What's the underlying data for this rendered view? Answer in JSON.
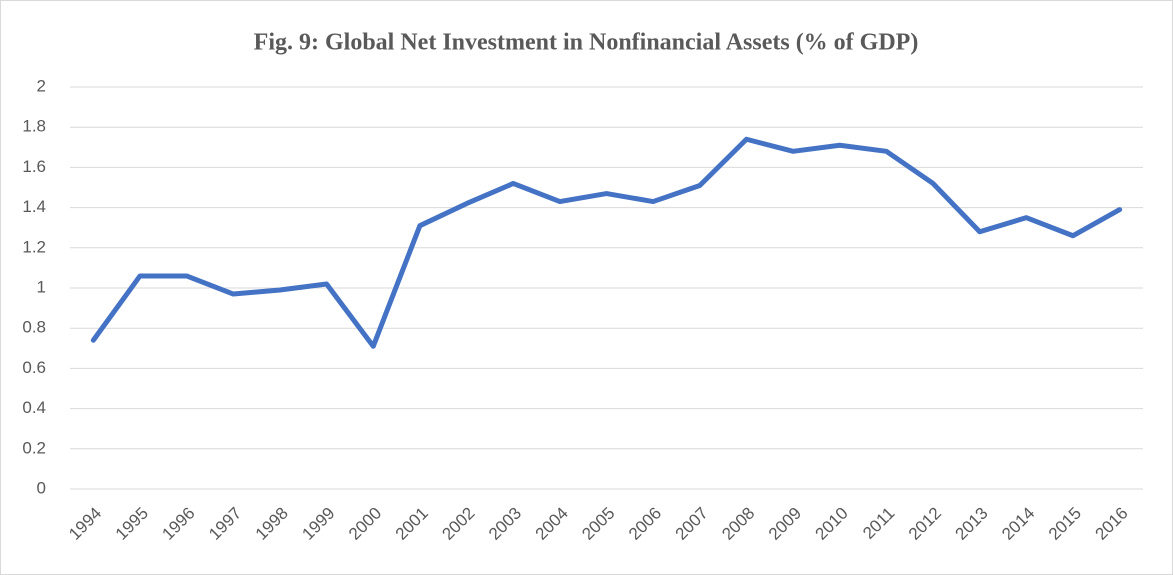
{
  "chart_data": {
    "type": "line",
    "title": "Fig. 9: Global Net Investment in Nonfinancial Assets (% of GDP)",
    "categories": [
      "1994",
      "1995",
      "1996",
      "1997",
      "1998",
      "1999",
      "2000",
      "2001",
      "2002",
      "2003",
      "2004",
      "2005",
      "2006",
      "2007",
      "2008",
      "2009",
      "2010",
      "2011",
      "2012",
      "2013",
      "2014",
      "2015",
      "2016"
    ],
    "series": [
      {
        "name": "Global net investment",
        "color": "#4472c4",
        "values": [
          0.74,
          1.06,
          1.06,
          0.97,
          0.99,
          1.02,
          0.71,
          1.31,
          1.42,
          1.52,
          1.43,
          1.47,
          1.43,
          1.51,
          1.74,
          1.68,
          1.71,
          1.68,
          1.52,
          1.28,
          1.35,
          1.26,
          1.39
        ]
      }
    ],
    "ylim": [
      0,
      2
    ],
    "yticks": [
      0,
      0.2,
      0.4,
      0.6,
      0.8,
      1,
      1.2,
      1.4,
      1.6,
      1.8,
      2
    ],
    "grid": true
  }
}
